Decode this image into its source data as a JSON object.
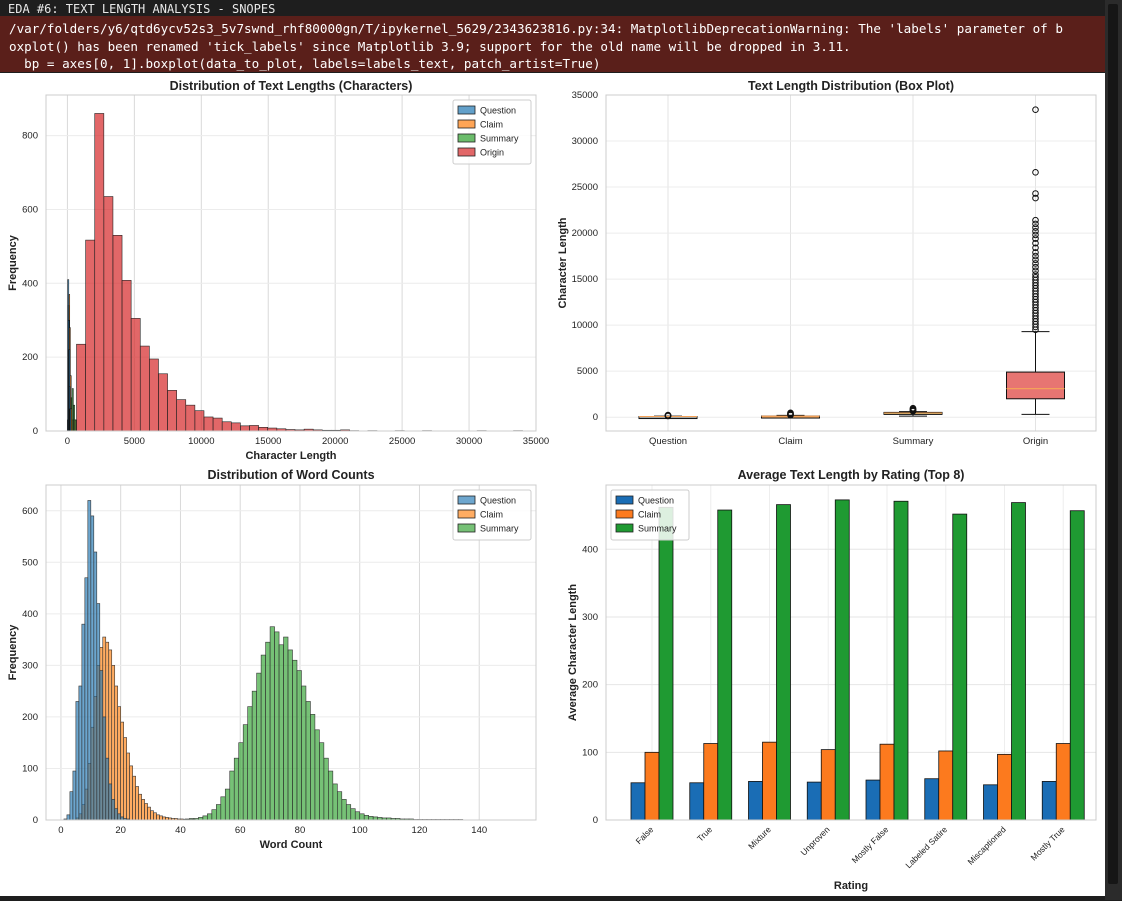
{
  "cell": {
    "output_header": "EDA #6: TEXT LENGTH ANALYSIS - SNOPES",
    "warning_lines": [
      "/var/folders/y6/qtd6ycv52s3_5v7swnd_rhf80000gn/T/ipykernel_5629/2343623816.py:34: MatplotlibDeprecationWarning: The 'labels' parameter of b",
      "oxplot() has been renamed 'tick_labels' since Matplotlib 3.9; support for the old name will be dropped in 3.11.",
      "  bp = axes[0, 1].boxplot(data_to_plot, labels=labels_text, patch_artist=True)"
    ]
  },
  "colors": {
    "question": "#1f77b4",
    "claim": "#ff7f0e",
    "summary": "#2ca02c",
    "origin": "#d62728",
    "bar_question": "#1a6db5",
    "bar_claim": "#fc7a1e",
    "bar_summary": "#1f9a32",
    "box_origin": "#e77572",
    "box_question": "#7ab0d6",
    "box_claim": "#f9b06a",
    "box_summary": "#8fce8f"
  },
  "chart_data": [
    {
      "type": "histogram",
      "title": "Distribution of Text Lengths (Characters)",
      "xlabel": "Character Length",
      "ylabel": "Frequency",
      "xlim": [
        -1600,
        35000
      ],
      "ylim": [
        0,
        910
      ],
      "xticks": [
        "0",
        "5000",
        "10000",
        "15000",
        "20000",
        "25000",
        "30000",
        "35000"
      ],
      "yticks": [
        "0",
        "200",
        "400",
        "600",
        "800"
      ],
      "legend": [
        "Question",
        "Claim",
        "Summary",
        "Origin"
      ],
      "legend_position": "upper right",
      "grid": true,
      "origin_bin_width": 680,
      "origin_bins_start": [
        0,
        680,
        1360,
        2040,
        2720,
        3400,
        4080,
        4760,
        5440,
        6120,
        6800,
        7480,
        8160,
        8840,
        9520,
        10200,
        10880,
        11560,
        12240,
        12920,
        13600,
        14280,
        14960,
        15640,
        16320,
        17000,
        17680,
        18360,
        19040,
        19720,
        20400,
        21080,
        22440,
        24480,
        26520,
        30600,
        33320
      ],
      "origin_counts": [
        30,
        235,
        517,
        860,
        635,
        530,
        408,
        305,
        230,
        195,
        155,
        110,
        85,
        70,
        55,
        38,
        35,
        25,
        22,
        14,
        15,
        10,
        8,
        6,
        4,
        3,
        5,
        3,
        2,
        2,
        3,
        1,
        1,
        1,
        1,
        1,
        1
      ],
      "question_spikes": [
        {
          "x": 60,
          "count": 410
        },
        {
          "x": 100,
          "count": 300
        },
        {
          "x": 140,
          "count": 220
        },
        {
          "x": 180,
          "count": 120
        },
        {
          "x": 220,
          "count": 60
        }
      ],
      "claim_spikes": [
        {
          "x": 80,
          "count": 340
        },
        {
          "x": 130,
          "count": 370
        },
        {
          "x": 180,
          "count": 280
        },
        {
          "x": 240,
          "count": 150
        },
        {
          "x": 300,
          "count": 60
        }
      ],
      "summary_spikes": [
        {
          "x": 300,
          "count": 90
        },
        {
          "x": 400,
          "count": 115
        },
        {
          "x": 500,
          "count": 70
        },
        {
          "x": 600,
          "count": 30
        }
      ]
    },
    {
      "type": "box",
      "title": "Text Length Distribution (Box Plot)",
      "ylabel": "Character Length",
      "ylim": [
        -1500,
        35000
      ],
      "yticks": [
        0,
        5000,
        10000,
        15000,
        20000,
        25000,
        30000,
        35000
      ],
      "categories": [
        "Question",
        "Claim",
        "Summary",
        "Origin"
      ],
      "boxes": [
        {
          "name": "Question",
          "q1": 40,
          "median": 55,
          "q3": 70,
          "whislo": 10,
          "whishi": 120,
          "fliers": [
            130,
            150,
            170,
            200,
            230
          ]
        },
        {
          "name": "Claim",
          "q1": 70,
          "median": 95,
          "q3": 125,
          "whislo": 20,
          "whishi": 200,
          "fliers": [
            220,
            260,
            300,
            350,
            420,
            480
          ]
        },
        {
          "name": "Summary",
          "q1": 350,
          "median": 440,
          "q3": 520,
          "whislo": 120,
          "whishi": 600,
          "fliers": [
            650,
            700,
            760,
            820,
            900,
            980
          ]
        },
        {
          "name": "Origin",
          "q1": 2000,
          "median": 3100,
          "q3": 4900,
          "whislo": 300,
          "whishi": 9300,
          "fliers": [
            9500,
            9800,
            10100,
            10400,
            10700,
            11000,
            11300,
            11600,
            11900,
            12200,
            12500,
            12800,
            13100,
            13400,
            13700,
            14000,
            14300,
            14600,
            14900,
            15200,
            15500,
            15900,
            16300,
            16700,
            17100,
            17500,
            17900,
            18400,
            18900,
            19400,
            19800,
            20200,
            20600,
            21000,
            21400,
            23800,
            24300,
            26600,
            33400
          ]
        }
      ]
    },
    {
      "type": "histogram",
      "title": "Distribution of Word Counts",
      "xlabel": "Word Count",
      "ylabel": "Frequency",
      "xlim": [
        -5,
        159
      ],
      "ylim": [
        0,
        650
      ],
      "xticks": [
        0,
        20,
        40,
        60,
        80,
        100,
        120,
        140
      ],
      "yticks": [
        0,
        100,
        200,
        300,
        400,
        500,
        600
      ],
      "legend": [
        "Question",
        "Claim",
        "Summary"
      ],
      "legend_position": "upper right",
      "grid": true,
      "question": {
        "start": 1,
        "bin_width": 1,
        "counts": [
          2,
          10,
          55,
          95,
          230,
          260,
          380,
          470,
          620,
          590,
          520,
          420,
          290,
          200,
          120,
          70,
          40,
          22,
          12,
          6,
          3,
          2
        ]
      },
      "claim": {
        "start": 5,
        "bin_width": 1,
        "counts": [
          4,
          12,
          30,
          60,
          110,
          180,
          240,
          300,
          335,
          355,
          345,
          330,
          300,
          260,
          220,
          190,
          160,
          130,
          105,
          85,
          65,
          50,
          40,
          32,
          25,
          18,
          14,
          10,
          8,
          6,
          5,
          4,
          3,
          3,
          2,
          2,
          1,
          1,
          1,
          1
        ]
      },
      "summary": {
        "start": 40,
        "bin_width": 1.5,
        "counts": [
          1,
          2,
          3,
          3,
          5,
          8,
          12,
          20,
          30,
          45,
          60,
          95,
          120,
          150,
          185,
          220,
          250,
          285,
          320,
          345,
          375,
          365,
          340,
          355,
          330,
          310,
          290,
          260,
          230,
          205,
          175,
          150,
          120,
          95,
          70,
          55,
          40,
          30,
          22,
          16,
          12,
          9,
          7,
          6,
          5,
          4,
          4,
          3,
          3,
          2,
          2,
          2,
          1,
          1,
          1,
          1,
          1,
          1,
          1,
          1,
          1,
          1,
          1
        ]
      }
    },
    {
      "type": "bar",
      "title": "Average Text Length by Rating (Top 8)",
      "xlabel": "Rating",
      "ylabel": "Average Character Length",
      "ylim": [
        0,
        495
      ],
      "yticks": [
        0,
        100,
        200,
        300,
        400
      ],
      "legend_position": "upper left",
      "grid": true,
      "categories": [
        "False",
        "True",
        "Mixture",
        "Unproven",
        "Mostly False",
        "Labeled Satire",
        "Miscaptioned",
        "Mostly True"
      ],
      "series": [
        {
          "name": "Question",
          "values": [
            55,
            55,
            57,
            56,
            59,
            61,
            52,
            57
          ]
        },
        {
          "name": "Claim",
          "values": [
            100,
            113,
            115,
            104,
            112,
            102,
            97,
            113
          ]
        },
        {
          "name": "Summary",
          "values": [
            462,
            458,
            466,
            473,
            471,
            452,
            469,
            457
          ]
        }
      ]
    }
  ]
}
